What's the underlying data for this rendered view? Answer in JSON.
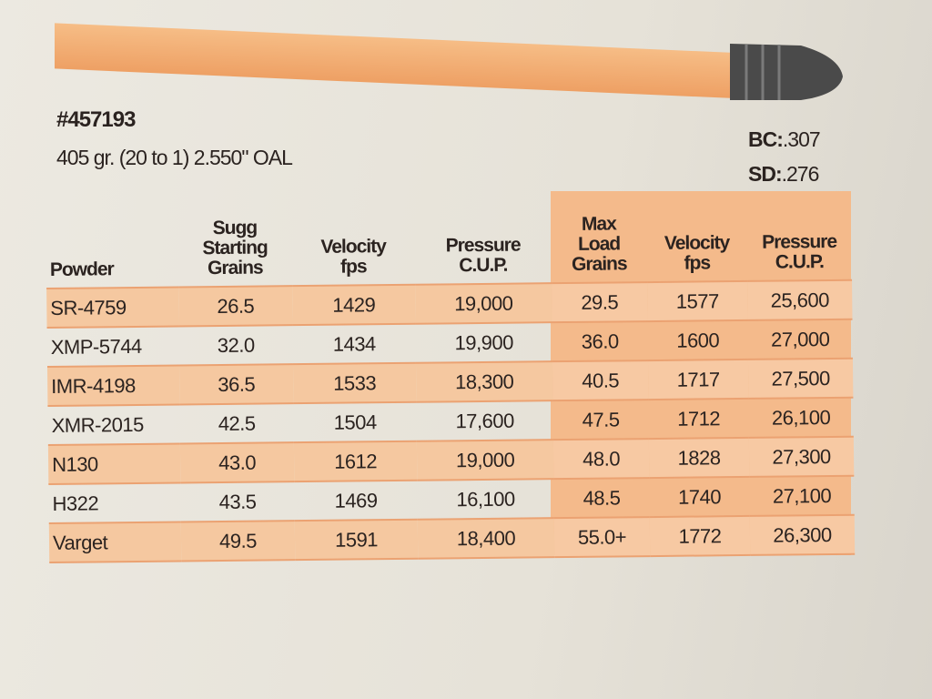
{
  "header": {
    "id": "#457193",
    "description": "405 gr. (20 to 1) 2.550\" OAL",
    "bc_label": "BC:",
    "bc_value": ".307",
    "sd_label": "SD:",
    "sd_value": ".276"
  },
  "table": {
    "columns": [
      [
        "Powder"
      ],
      [
        "Sugg",
        "Starting",
        "Grains"
      ],
      [
        "Velocity",
        "fps"
      ],
      [
        "Pressure",
        "C.U.P."
      ],
      [
        "Max",
        "Load",
        "Grains"
      ],
      [
        "Velocity",
        "fps"
      ],
      [
        "Pressure",
        "C.U.P."
      ]
    ],
    "rows": [
      [
        "SR-4759",
        "26.5",
        "1429",
        "19,000",
        "29.5",
        "1577",
        "25,600"
      ],
      [
        "XMP-5744",
        "32.0",
        "1434",
        "19,900",
        "36.0",
        "1600",
        "27,000"
      ],
      [
        "IMR-4198",
        "36.5",
        "1533",
        "18,300",
        "40.5",
        "1717",
        "27,500"
      ],
      [
        "XMR-2015",
        "42.5",
        "1504",
        "17,600",
        "47.5",
        "1712",
        "26,100"
      ],
      [
        "N130",
        "43.0",
        "1612",
        "19,000",
        "48.0",
        "1828",
        "27,300"
      ],
      [
        "H322",
        "43.5",
        "1469",
        "16,100",
        "48.5",
        "1740",
        "27,100"
      ],
      [
        "Varget",
        "49.5",
        "1591",
        "18,400",
        "55.0+",
        "1772",
        "26,300"
      ]
    ]
  }
}
